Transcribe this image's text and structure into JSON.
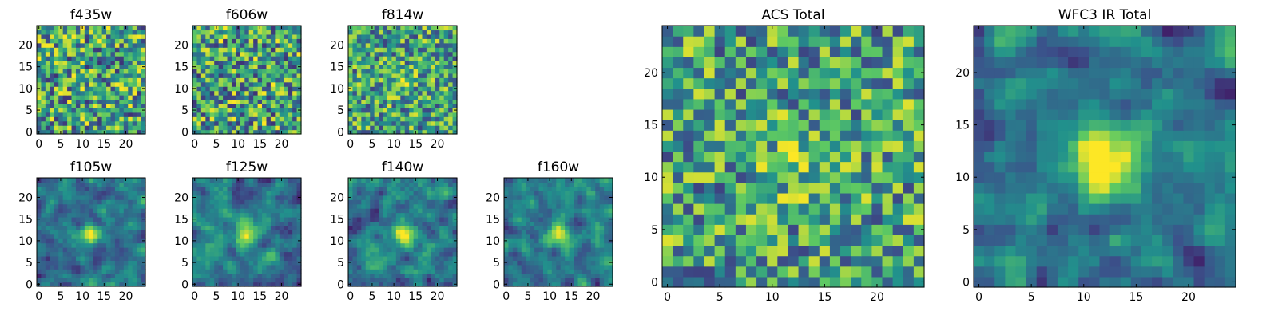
{
  "colormap": [
    "#440154",
    "#3b528b",
    "#21918c",
    "#5ec962",
    "#fde725"
  ],
  "chart_data": [
    {
      "type": "heatmap",
      "title": "f435w",
      "xlim": [
        0,
        24
      ],
      "ylim": [
        0,
        24
      ],
      "xticks": [
        0,
        5,
        10,
        15,
        20
      ],
      "yticks": [
        0,
        5,
        10,
        15,
        20
      ],
      "xtick_labels": [
        "0",
        "5",
        "10",
        "15",
        "20"
      ],
      "ytick_labels": [
        "0",
        "5",
        "10",
        "15",
        "20"
      ],
      "pattern": "noise",
      "seed": 11
    },
    {
      "type": "heatmap",
      "title": "f606w",
      "xlim": [
        0,
        24
      ],
      "ylim": [
        0,
        24
      ],
      "xticks": [
        0,
        5,
        10,
        15,
        20
      ],
      "yticks": [
        0,
        5,
        10,
        15,
        20
      ],
      "xtick_labels": [
        "0",
        "5",
        "10",
        "15",
        "20"
      ],
      "ytick_labels": [
        "0",
        "5",
        "10",
        "15",
        "20"
      ],
      "pattern": "noise",
      "seed": 23
    },
    {
      "type": "heatmap",
      "title": "f814w",
      "xlim": [
        0,
        24
      ],
      "ylim": [
        0,
        24
      ],
      "xticks": [
        0,
        5,
        10,
        15,
        20
      ],
      "yticks": [
        0,
        5,
        10,
        15,
        20
      ],
      "xtick_labels": [
        "0",
        "5",
        "10",
        "15",
        "20"
      ],
      "ytick_labels": [
        "0",
        "5",
        "10",
        "15",
        "20"
      ],
      "pattern": "noise_faint_source",
      "seed": 37
    },
    {
      "type": "heatmap",
      "title": "f105w",
      "xlim": [
        0,
        24
      ],
      "ylim": [
        0,
        24
      ],
      "xticks": [
        0,
        5,
        10,
        15,
        20
      ],
      "yticks": [
        0,
        5,
        10,
        15,
        20
      ],
      "xtick_labels": [
        "0",
        "5",
        "10",
        "15",
        "20"
      ],
      "ytick_labels": [
        "0",
        "5",
        "10",
        "15",
        "20"
      ],
      "pattern": "smooth_source",
      "seed": 41
    },
    {
      "type": "heatmap",
      "title": "f125w",
      "xlim": [
        0,
        24
      ],
      "ylim": [
        0,
        24
      ],
      "xticks": [
        0,
        5,
        10,
        15,
        20
      ],
      "yticks": [
        0,
        5,
        10,
        15,
        20
      ],
      "xtick_labels": [
        "0",
        "5",
        "10",
        "15",
        "20"
      ],
      "ytick_labels": [
        "0",
        "5",
        "10",
        "15",
        "20"
      ],
      "pattern": "smooth_source",
      "seed": 53
    },
    {
      "type": "heatmap",
      "title": "f140w",
      "xlim": [
        0,
        24
      ],
      "ylim": [
        0,
        24
      ],
      "xticks": [
        0,
        5,
        10,
        15,
        20
      ],
      "yticks": [
        0,
        5,
        10,
        15,
        20
      ],
      "xtick_labels": [
        "0",
        "5",
        "10",
        "15",
        "20"
      ],
      "ytick_labels": [
        "0",
        "5",
        "10",
        "15",
        "20"
      ],
      "pattern": "smooth_source",
      "seed": 67
    },
    {
      "type": "heatmap",
      "title": "f160w",
      "xlim": [
        0,
        24
      ],
      "ylim": [
        0,
        24
      ],
      "xticks": [
        0,
        5,
        10,
        15,
        20
      ],
      "yticks": [
        0,
        5,
        10,
        15,
        20
      ],
      "xtick_labels": [
        "0",
        "5",
        "10",
        "15",
        "20"
      ],
      "ytick_labels": [
        "0",
        "5",
        "10",
        "15",
        "20"
      ],
      "pattern": "smooth_source",
      "seed": 79
    },
    {
      "type": "heatmap",
      "title": "ACS Total",
      "xlim": [
        0,
        24
      ],
      "ylim": [
        0,
        24
      ],
      "xticks": [
        0,
        5,
        10,
        15,
        20
      ],
      "yticks": [
        0,
        5,
        10,
        15,
        20
      ],
      "xtick_labels": [
        "0",
        "5",
        "10",
        "15",
        "20"
      ],
      "ytick_labels": [
        "0",
        "5",
        "10",
        "15",
        "20"
      ],
      "pattern": "noise_faint_source",
      "seed": 97
    },
    {
      "type": "heatmap",
      "title": "WFC3 IR Total",
      "xlim": [
        0,
        24
      ],
      "ylim": [
        0,
        24
      ],
      "xticks": [
        0,
        5,
        10,
        15,
        20
      ],
      "yticks": [
        0,
        5,
        10,
        15,
        20
      ],
      "xtick_labels": [
        "0",
        "5",
        "10",
        "15",
        "20"
      ],
      "ytick_labels": [
        "0",
        "5",
        "10",
        "15",
        "20"
      ],
      "pattern": "bright_source",
      "seed": 113
    }
  ]
}
